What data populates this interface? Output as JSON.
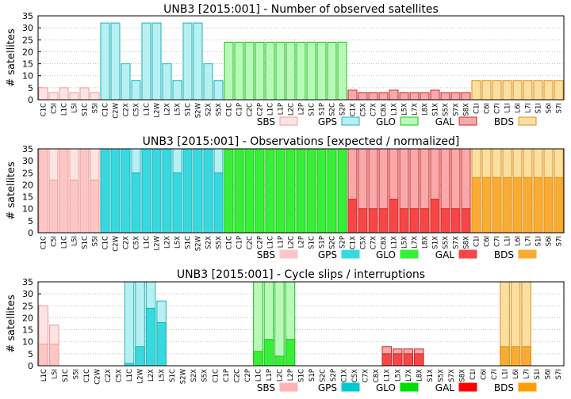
{
  "systems": [
    {
      "name": "SBS",
      "light": "#fde4e4",
      "mid": "#fcc6c6",
      "stroke": "#f29a9a",
      "dark": "#ffb3b3"
    },
    {
      "name": "GPS",
      "light": "#b6f0f2",
      "mid": "#38d9de",
      "stroke": "#22b2b8",
      "dark": "#00c9cf"
    },
    {
      "name": "GLO",
      "light": "#b8f9b8",
      "mid": "#37ef37",
      "stroke": "#1fbf1f",
      "dark": "#00dd00"
    },
    {
      "name": "GAL",
      "light": "#f9a9a9",
      "mid": "#f64646",
      "stroke": "#c62828",
      "dark": "#ff0000"
    },
    {
      "name": "BDS",
      "light": "#fbdfa0",
      "mid": "#f9ab32",
      "stroke": "#d9901d",
      "dark": "#ff9e00"
    }
  ],
  "chart_data": [
    {
      "type": "bar",
      "title": "UNB3 [2015:001] - Number of observed satellites",
      "ylabel": "# satellites",
      "ylim": [
        0,
        35
      ],
      "yticks": [
        0,
        5,
        10,
        15,
        20,
        25,
        30,
        35
      ],
      "grid": true,
      "legend": "bottom-right",
      "legend_labels": [
        "SBS",
        "GPS",
        "GLO",
        "GAL",
        "BDS"
      ],
      "categories": [
        "C1C",
        "C5I",
        "L1C",
        "L5I",
        "S1C",
        "S5I",
        "C1C",
        "C2W",
        "C2X",
        "C5X",
        "L1C",
        "L2W",
        "L2X",
        "L5X",
        "S1C",
        "S2W",
        "S2X",
        "S5X",
        "C1C",
        "C1P",
        "C2C",
        "C2P",
        "L1C",
        "L1P",
        "L2C",
        "L2P",
        "S1C",
        "S1P",
        "S2C",
        "S2P",
        "C1X",
        "C5X",
        "C7X",
        "C8X",
        "L1X",
        "L5X",
        "L7X",
        "L8X",
        "S1X",
        "S5X",
        "S7X",
        "S8X",
        "C1I",
        "C6I",
        "C7I",
        "L1I",
        "L6I",
        "L7I",
        "S1I",
        "S6I",
        "S7I"
      ],
      "tick_labels": [
        "C1C",
        "C5I",
        "L1C",
        "L5I",
        "S1C",
        "S5I",
        "C1C",
        "C2W",
        "C2X",
        "C5X",
        "L1C",
        "L2W",
        "L2X",
        "L5X",
        "S1C",
        "S2W",
        "S2X",
        "S5X",
        "C1C",
        "C1P",
        "C2C",
        "C2P",
        "L1C",
        "L1P",
        "L2C",
        "L2P",
        "S1C",
        "S1P",
        "S2C",
        "S2P",
        "C1X",
        "C5X",
        "C7X",
        "C8X",
        "L1X",
        "L5X",
        "L7X",
        "L8X",
        "S1X",
        "S5X",
        "S7X",
        "S8X",
        "C1I",
        "C6I",
        "C7I",
        "L1I",
        "L6I",
        "L7I",
        "S1I",
        "S6I",
        "S7I"
      ],
      "system_of_bar": [
        0,
        0,
        0,
        0,
        0,
        0,
        1,
        1,
        1,
        1,
        1,
        1,
        1,
        1,
        1,
        1,
        1,
        1,
        2,
        2,
        2,
        2,
        2,
        2,
        2,
        2,
        2,
        2,
        2,
        2,
        3,
        3,
        3,
        3,
        3,
        3,
        3,
        3,
        3,
        3,
        3,
        3,
        4,
        4,
        4,
        4,
        4,
        4,
        4,
        4,
        4
      ],
      "values": [
        5,
        3,
        5,
        3,
        5,
        3,
        32,
        32,
        15,
        8,
        32,
        32,
        15,
        8,
        32,
        32,
        15,
        8,
        24,
        24,
        24,
        24,
        24,
        24,
        24,
        24,
        24,
        24,
        24,
        24,
        4,
        3,
        3,
        3,
        4,
        3,
        3,
        3,
        4,
        3,
        3,
        3,
        8,
        8,
        8,
        8,
        8,
        8,
        8,
        8,
        8
      ]
    },
    {
      "type": "bar",
      "title": "UNB3 [2015:001] - Observations [expected / normalized]",
      "ylabel": "# satellites",
      "ylim": [
        0,
        35
      ],
      "yticks": [
        0,
        5,
        10,
        15,
        20,
        25,
        30,
        35
      ],
      "grid": true,
      "legend": "bottom-right",
      "legend_labels": [
        "SBS",
        "GPS",
        "GLO",
        "GAL",
        "BDS"
      ],
      "categories": [
        "C1C",
        "C5I",
        "L1C",
        "L5I",
        "S1C",
        "S5I",
        "C1C",
        "C2W",
        "C2X",
        "C5X",
        "L1C",
        "L2W",
        "L2X",
        "L5X",
        "S1C",
        "S2W",
        "S2X",
        "S5X",
        "C1C",
        "C1P",
        "C2C",
        "C2P",
        "L1C",
        "L1P",
        "L2C",
        "L2P",
        "S1C",
        "S1P",
        "S2C",
        "S2P",
        "C1X",
        "C5X",
        "C7X",
        "C8X",
        "L1X",
        "L5X",
        "L7X",
        "L8X",
        "S1X",
        "S5X",
        "S7X",
        "S8X",
        "C1I",
        "C6I",
        "C7I",
        "L1I",
        "L6I",
        "L7I",
        "S1I",
        "S6I",
        "S7I"
      ],
      "tick_labels": [
        "C1C",
        "C5I",
        "L1C",
        "L5I",
        "S1C",
        "S5I",
        "C1C",
        "C2W",
        "C2X",
        "C5X",
        "L1C",
        "L2W",
        "L2X",
        "L5X",
        "S1C",
        "S2W",
        "S2X",
        "S5X",
        "C1C",
        "C1P",
        "C2C",
        "C2P",
        "L1C",
        "L1P",
        "L2C",
        "L2P",
        "S1C",
        "S1P",
        "S2C",
        "S2P",
        "C1X",
        "C5X",
        "C7X",
        "C8X",
        "L1X",
        "L5X",
        "L7X",
        "L8X",
        "S1X",
        "S5X",
        "S7X",
        "S8X",
        "C1I",
        "C6I",
        "C7I",
        "L1I",
        "L6I",
        "L7I",
        "S1I",
        "S6I",
        "S7I"
      ],
      "system_of_bar": [
        0,
        0,
        0,
        0,
        0,
        0,
        1,
        1,
        1,
        1,
        1,
        1,
        1,
        1,
        1,
        1,
        1,
        1,
        2,
        2,
        2,
        2,
        2,
        2,
        2,
        2,
        2,
        2,
        2,
        2,
        3,
        3,
        3,
        3,
        3,
        3,
        3,
        3,
        3,
        3,
        3,
        3,
        4,
        4,
        4,
        4,
        4,
        4,
        4,
        4,
        4
      ],
      "expected": [
        35,
        35,
        35,
        35,
        35,
        35,
        35,
        35,
        35,
        35,
        35,
        35,
        35,
        35,
        35,
        35,
        35,
        35,
        35,
        35,
        35,
        35,
        35,
        35,
        35,
        35,
        35,
        35,
        35,
        35,
        35,
        35,
        35,
        35,
        35,
        35,
        35,
        35,
        35,
        35,
        35,
        35,
        35,
        35,
        35,
        35,
        35,
        35,
        35,
        35,
        35
      ],
      "values": [
        35,
        22,
        35,
        22,
        35,
        22,
        35,
        35,
        35,
        25,
        35,
        35,
        35,
        25,
        35,
        35,
        35,
        25,
        35,
        35,
        35,
        35,
        35,
        35,
        35,
        35,
        35,
        35,
        35,
        35,
        14,
        10,
        10,
        10,
        14,
        10,
        10,
        10,
        14,
        10,
        10,
        10,
        23,
        23,
        23,
        23,
        23,
        23,
        23,
        23,
        23
      ]
    },
    {
      "type": "bar",
      "title": "UNB3 [2015:001] - Cycle slips / interruptions",
      "ylabel": "# satellites",
      "ylim": [
        0,
        35
      ],
      "yticks": [
        0,
        5,
        10,
        15,
        20,
        25,
        30,
        35
      ],
      "grid": true,
      "legend": "bottom-right",
      "legend_labels": [
        "SBS",
        "GPS",
        "GLO",
        "GAL",
        "BDS"
      ],
      "categories": [
        "L1C",
        "L5I",
        "S1C",
        "S5I",
        "C1C",
        "C2W",
        "C2X",
        "C5X",
        "L1C",
        "L2W",
        "L2X",
        "L5X",
        "S1C",
        "S2W",
        "S2X",
        "S5X",
        "C1C",
        "C1P",
        "C2C",
        "C2P",
        "L1C",
        "L1P",
        "L2C",
        "L2P",
        "S1C",
        "S1P",
        "S2C",
        "S2P",
        "C1X",
        "C5X",
        "C7X",
        "C8X",
        "L1X",
        "L5X",
        "L7X",
        "L8X",
        "S1X",
        "S5X",
        "S7X",
        "S8X",
        "C1I",
        "C6I",
        "C7I",
        "L1I",
        "L6I",
        "L7I",
        "S1I",
        "S6I",
        "S7I"
      ],
      "tick_labels": [
        "L1C",
        "L5I",
        "S1C",
        "S5I",
        "C1C",
        "C2W",
        "C2X",
        "C5X",
        "L1C",
        "L2W",
        "L2X",
        "L5X",
        "S1C",
        "S2W",
        "S2X",
        "S5X",
        "C1C",
        "C1P",
        "C2C",
        "C2P",
        "L1C",
        "L1P",
        "L2C",
        "L2P",
        "S1C",
        "S1P",
        "S2C",
        "S2P",
        "C1X",
        "C5X",
        "C7X",
        "C8X",
        "L1X",
        "L5X",
        "L7X",
        "L8X",
        "S1X",
        "S5X",
        "S7X",
        "S8X",
        "C1I",
        "C6I",
        "C7I",
        "L1I",
        "L6I",
        "L7I",
        "S1I",
        "S6I",
        "S7I"
      ],
      "system_of_bar": [
        0,
        0,
        0,
        0,
        1,
        1,
        1,
        1,
        1,
        1,
        1,
        1,
        1,
        1,
        1,
        1,
        2,
        2,
        2,
        2,
        2,
        2,
        2,
        2,
        2,
        2,
        2,
        2,
        3,
        3,
        3,
        3,
        3,
        3,
        3,
        3,
        3,
        3,
        3,
        3,
        4,
        4,
        4,
        4,
        4,
        4,
        4,
        4,
        4
      ],
      "series": [
        {
          "name": "cycle slips",
          "values": [
            25,
            17,
            0,
            0,
            0,
            0,
            0,
            0,
            35,
            35,
            35,
            27,
            0,
            0,
            0,
            0,
            0,
            0,
            0,
            0,
            35,
            35,
            35,
            35,
            0,
            0,
            0,
            0,
            0,
            0,
            0,
            0,
            8,
            7,
            7,
            7,
            0,
            0,
            0,
            0,
            0,
            0,
            0,
            35,
            35,
            35,
            0,
            0,
            0
          ]
        },
        {
          "name": "interruptions",
          "values": [
            9,
            9,
            0,
            0,
            0,
            0,
            0,
            0,
            1,
            8,
            24,
            18,
            0,
            0,
            0,
            0,
            0,
            0,
            0,
            0,
            6,
            11,
            4,
            11,
            0,
            0,
            0,
            0,
            0,
            0,
            0,
            0,
            5,
            5,
            5,
            5,
            0,
            0,
            0,
            0,
            0,
            0,
            0,
            8,
            8,
            8,
            0,
            0,
            0
          ]
        }
      ]
    }
  ]
}
